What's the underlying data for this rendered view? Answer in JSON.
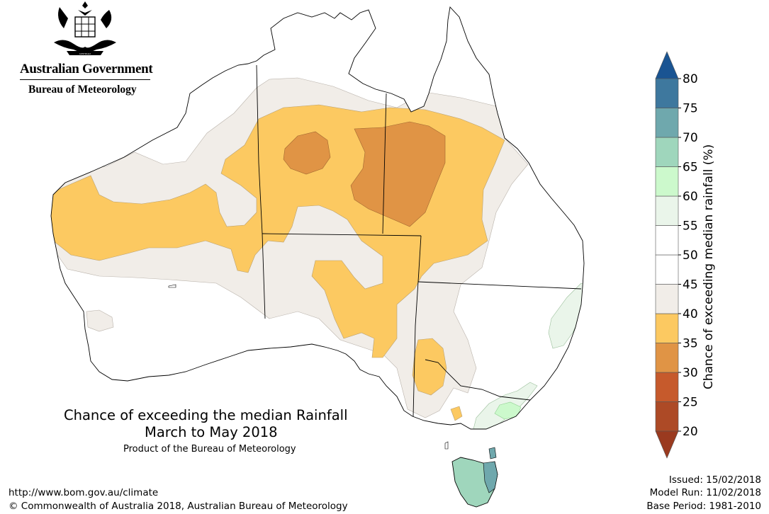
{
  "agency": {
    "line1": "Australian Government",
    "line2": "Bureau of Meteorology"
  },
  "title": {
    "line1": "Chance of exceeding the median Rainfall",
    "line2": "March to May 2018",
    "product": "Product of the Bureau of Meteorology"
  },
  "footer": {
    "url": "http://www.bom.gov.au/climate",
    "copyright": "© Commonwealth of Australia 2018, Australian Bureau of Meteorology",
    "issued": "Issued: 15/02/2018",
    "model_run": "Model Run: 11/02/2018",
    "base_period": "Base Period: 1981-2010"
  },
  "legend": {
    "title": "Chance of exceeding median rainfall (%)",
    "ticks": [
      "80",
      "75",
      "70",
      "65",
      "60",
      "55",
      "50",
      "45",
      "40",
      "35",
      "30",
      "25",
      "20"
    ],
    "bands": [
      {
        "range": "20-25",
        "color": "#ad4a26"
      },
      {
        "range": "25-30",
        "color": "#c65a2c"
      },
      {
        "range": "30-35",
        "color": "#e09445"
      },
      {
        "range": "35-40",
        "color": "#fcc961"
      },
      {
        "range": "40-45",
        "color": "#f1ede8"
      },
      {
        "range": "45-50",
        "color": "#ffffff"
      },
      {
        "range": "50-55",
        "color": "#ffffff"
      },
      {
        "range": "55-60",
        "color": "#eaf5ea"
      },
      {
        "range": "60-65",
        "color": "#ccf9cc"
      },
      {
        "range": "65-70",
        "color": "#9fd6bc"
      },
      {
        "range": "70-75",
        "color": "#6fa8ad"
      },
      {
        "range": "75-80",
        "color": "#3e789e"
      }
    ],
    "below_color": "#9a3a1f",
    "above_color": "#1a5492"
  },
  "map_colors": {
    "land": "#ffffff",
    "near_normal": "#f1ede8",
    "chance_35_40": "#fcc961",
    "chance_30_35": "#e09445",
    "chance_55_60": "#eaf5ea",
    "chance_60_65": "#ccf9cc",
    "chance_65_70": "#9fd6bc",
    "chance_70_75": "#6fa8ad"
  }
}
